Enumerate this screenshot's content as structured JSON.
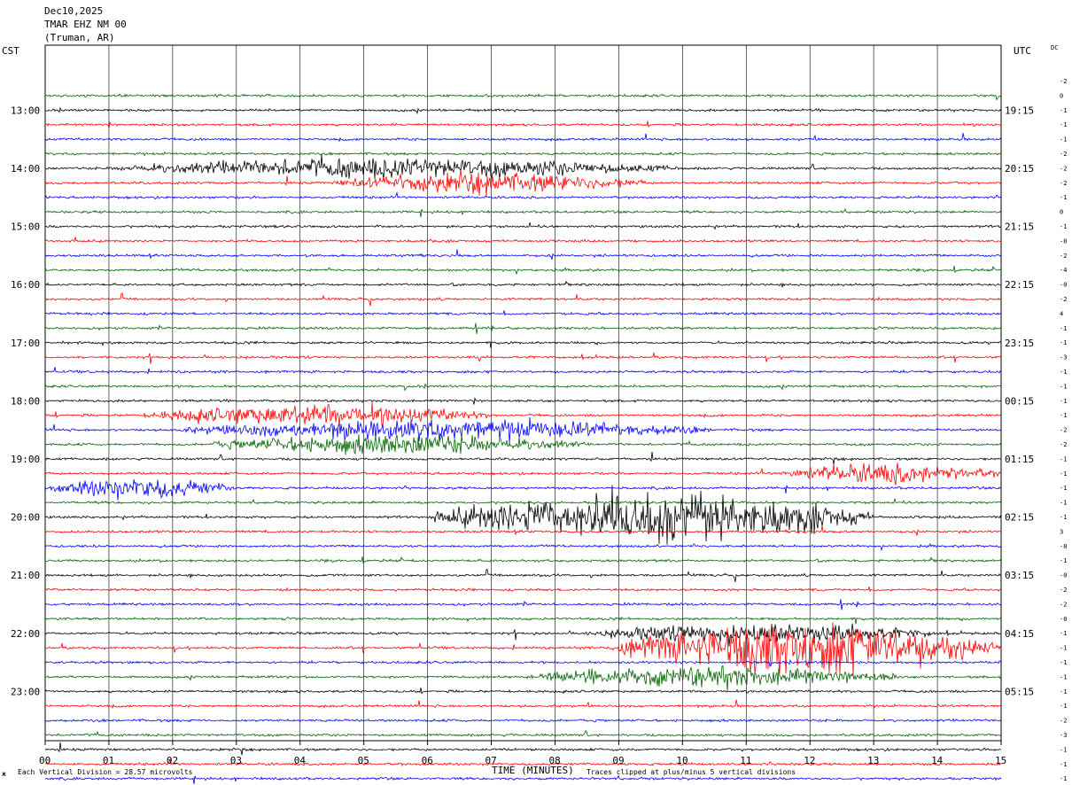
{
  "header": {
    "date": "Dec10,2025",
    "station": "TMAR EHZ NM 00",
    "location": "(Truman, AR)"
  },
  "left_tz": "CST",
  "right_tz": "UTC",
  "dc_label": "DC",
  "footer": {
    "left_mark": "ж",
    "vertical_division": "Each Vertical Division =   28.57 microvolts",
    "clipping": "Traces clipped at plus/minus 5 vertical divisions"
  },
  "chart_data": {
    "type": "helicorder",
    "xlabel": "TIME (MINUTES)",
    "xlim": [
      0,
      15
    ],
    "x_ticks": [
      "00",
      "01",
      "02",
      "03",
      "04",
      "05",
      "06",
      "07",
      "08",
      "09",
      "10",
      "11",
      "12",
      "13",
      "14",
      "15"
    ],
    "cst_hours": [
      "13:00",
      "14:00",
      "15:00",
      "16:00",
      "17:00",
      "18:00",
      "19:00",
      "20:00",
      "21:00",
      "22:00",
      "23:00"
    ],
    "utc_hours": [
      "19:15",
      "20:15",
      "21:15",
      "22:15",
      "23:15",
      "00:15",
      "01:15",
      "02:15",
      "03:15",
      "04:15",
      "05:15"
    ],
    "trace_colors": [
      "#006400",
      "#000000",
      "#ff0000",
      "#0000ff"
    ],
    "traces_per_hour": 4,
    "minutes_per_trace": 15,
    "dc_offsets": [
      "-2",
      "0",
      "-1",
      "-1",
      "-1",
      "-2",
      "-2",
      "-2",
      "-1",
      "0",
      "-1",
      "-0",
      "-2",
      "-4",
      "-0",
      "-2",
      "4",
      "-1",
      "-1",
      "-3",
      "-1",
      "-1",
      "-1",
      "-1",
      "-2",
      "-2",
      "-1",
      "-1",
      "-1",
      "-1",
      "-1",
      "3",
      "-0",
      "-1",
      "-0",
      "-2",
      "-2",
      "-0",
      "-1",
      "-1",
      "-1",
      "-1",
      "-1",
      "-1",
      "-2",
      "-3",
      "-1",
      "-1",
      "-1",
      "-1"
    ],
    "notable_signals": [
      {
        "trace": 5,
        "minutes": [
          1.0,
          10.0
        ],
        "amplitude": "large"
      },
      {
        "trace": 6,
        "minutes": [
          4.5,
          9.5
        ],
        "amplitude": "large"
      },
      {
        "trace": 22,
        "minutes": [
          1.5,
          7.0
        ],
        "amplitude": "large"
      },
      {
        "trace": 23,
        "minutes": [
          2.0,
          10.5
        ],
        "amplitude": "large"
      },
      {
        "trace": 24,
        "minutes": [
          2.5,
          8.5
        ],
        "amplitude": "large"
      },
      {
        "trace": 27,
        "minutes": [
          0.0,
          3.0
        ],
        "amplitude": "large"
      },
      {
        "trace": 26,
        "minutes": [
          11.5,
          15.0
        ],
        "amplitude": "large"
      },
      {
        "trace": 29,
        "minutes": [
          6.0,
          13.0
        ],
        "amplitude": "very large"
      },
      {
        "trace": 37,
        "minutes": [
          8.5,
          14.0
        ],
        "amplitude": "large"
      },
      {
        "trace": 38,
        "minutes": [
          8.8,
          15.0
        ],
        "amplitude": "very large"
      },
      {
        "trace": 40,
        "minutes": [
          7.5,
          13.5
        ],
        "amplitude": "large"
      }
    ]
  }
}
